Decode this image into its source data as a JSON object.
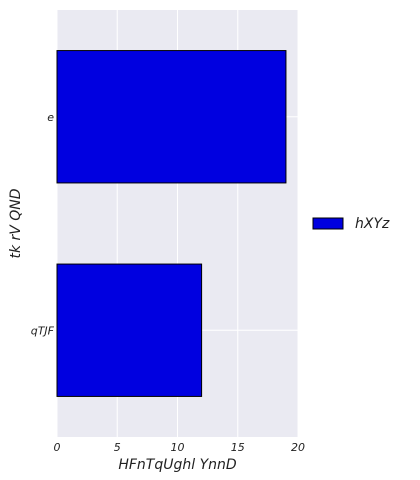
{
  "chart_data": {
    "type": "bar",
    "orientation": "horizontal",
    "categories": [
      "e",
      "qTJF"
    ],
    "series": [
      {
        "name": "hXYz",
        "values": [
          19,
          12
        ],
        "color": "#0000e0"
      }
    ],
    "xlabel": "HFnTqUghl YnnD",
    "ylabel": "tk rV QND",
    "xlim": [
      0,
      20
    ],
    "xticks": [
      0,
      5,
      10,
      15,
      20
    ],
    "grid": true,
    "legend_position": "right",
    "background": "#eaeaf2"
  }
}
